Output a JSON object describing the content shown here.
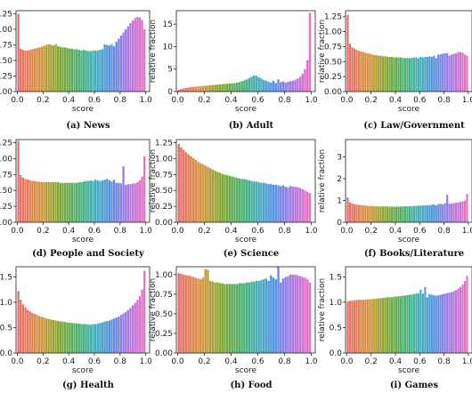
{
  "chart_data": [
    {
      "type": "bar",
      "caption": "(a) News",
      "xlabel": "score",
      "ylabel": "",
      "ylim": [
        0,
        1.3
      ],
      "yticks": [
        "0.00",
        "0.25",
        "0.50",
        "0.75",
        "1.00",
        "1.25"
      ],
      "xticks": [
        "0.0",
        "0.2",
        "0.4",
        "0.6",
        "0.8",
        "1.0"
      ],
      "values": [
        1.25,
        0.69,
        0.67,
        0.66,
        0.66,
        0.67,
        0.68,
        0.69,
        0.7,
        0.71,
        0.72,
        0.74,
        0.75,
        0.76,
        0.75,
        0.74,
        0.76,
        0.73,
        0.72,
        0.71,
        0.71,
        0.7,
        0.69,
        0.69,
        0.68,
        0.68,
        0.67,
        0.66,
        0.67,
        0.66,
        0.65,
        0.65,
        0.66,
        0.66,
        0.66,
        0.67,
        0.68,
        0.76,
        0.75,
        0.74,
        0.76,
        0.73,
        0.8,
        0.85,
        0.9,
        0.95,
        1.0,
        1.05,
        1.1,
        1.14,
        1.18,
        1.2,
        1.19,
        1.15,
        1.0
      ]
    },
    {
      "type": "bar",
      "caption": "(b) Adult",
      "xlabel": "score",
      "ylabel": "relative fraction",
      "ylim": [
        0,
        18
      ],
      "yticks": [
        "0",
        "5",
        "10",
        "15"
      ],
      "xticks": [
        "0.0",
        "0.2",
        "0.4",
        "0.6",
        "0.8",
        "1.0"
      ],
      "values": [
        0.4,
        0.6,
        0.7,
        0.8,
        0.9,
        1.0,
        1.05,
        1.1,
        1.15,
        1.2,
        1.25,
        1.3,
        1.35,
        1.4,
        1.45,
        1.5,
        1.55,
        1.6,
        1.65,
        1.7,
        1.75,
        1.8,
        1.85,
        1.9,
        2.0,
        2.1,
        2.3,
        2.5,
        2.7,
        3.0,
        3.3,
        3.6,
        3.5,
        3.2,
        2.9,
        2.6,
        2.4,
        2.2,
        2.0,
        2.4,
        1.9,
        2.7,
        2.1,
        2.3,
        2.0,
        2.2,
        2.3,
        2.4,
        2.6,
        2.9,
        3.3,
        4.0,
        5.0,
        7.0,
        17.5
      ]
    },
    {
      "type": "bar",
      "caption": "(c) Law/Government",
      "xlabel": "score",
      "ylabel": "relative fraction",
      "ylim": [
        0,
        1.35
      ],
      "yticks": [
        "0.00",
        "0.25",
        "0.50",
        "0.75",
        "1.00",
        "1.25"
      ],
      "xticks": [
        "0.0",
        "0.2",
        "0.4",
        "0.6",
        "0.8",
        "1.0"
      ],
      "values": [
        1.28,
        0.8,
        0.74,
        0.72,
        0.7,
        0.68,
        0.67,
        0.66,
        0.65,
        0.64,
        0.63,
        0.62,
        0.61,
        0.61,
        0.6,
        0.6,
        0.59,
        0.59,
        0.58,
        0.58,
        0.58,
        0.57,
        0.57,
        0.57,
        0.57,
        0.56,
        0.56,
        0.56,
        0.56,
        0.56,
        0.57,
        0.57,
        0.56,
        0.58,
        0.57,
        0.58,
        0.58,
        0.59,
        0.58,
        0.6,
        0.56,
        0.62,
        0.62,
        0.63,
        0.64,
        0.64,
        0.6,
        0.62,
        0.63,
        0.64,
        0.66,
        0.66,
        0.65,
        0.62,
        0.6
      ]
    },
    {
      "type": "bar",
      "caption": "(d) People and Society",
      "xlabel": "score",
      "ylabel": "",
      "ylim": [
        0,
        1.3
      ],
      "yticks": [
        "0.00",
        "0.25",
        "0.50",
        "0.75",
        "1.00",
        "1.25"
      ],
      "xticks": [
        "0.0",
        "0.2",
        "0.4",
        "0.6",
        "0.8",
        "1.0"
      ],
      "values": [
        1.28,
        0.74,
        0.7,
        0.68,
        0.67,
        0.66,
        0.65,
        0.65,
        0.64,
        0.64,
        0.63,
        0.63,
        0.63,
        0.63,
        0.63,
        0.63,
        0.63,
        0.63,
        0.62,
        0.62,
        0.62,
        0.62,
        0.62,
        0.62,
        0.62,
        0.62,
        0.63,
        0.63,
        0.64,
        0.65,
        0.65,
        0.66,
        0.65,
        0.67,
        0.66,
        0.65,
        0.66,
        0.67,
        0.68,
        0.66,
        0.64,
        0.67,
        0.62,
        0.62,
        0.61,
        0.88,
        0.59,
        0.6,
        0.6,
        0.61,
        0.61,
        0.63,
        0.66,
        0.72,
        1.04
      ]
    },
    {
      "type": "bar",
      "caption": "(e) Science",
      "xlabel": "score",
      "ylabel": "relative fraction",
      "ylim": [
        0,
        1.3
      ],
      "yticks": [
        "0.00",
        "0.25",
        "0.50",
        "0.75",
        "1.00",
        "1.25"
      ],
      "xticks": [
        "0.0",
        "0.2",
        "0.4",
        "0.6",
        "0.8",
        "1.0"
      ],
      "values": [
        1.23,
        1.18,
        1.14,
        1.1,
        1.07,
        1.04,
        1.01,
        0.98,
        0.95,
        0.93,
        0.91,
        0.89,
        0.87,
        0.85,
        0.83,
        0.81,
        0.79,
        0.78,
        0.76,
        0.75,
        0.74,
        0.73,
        0.72,
        0.71,
        0.7,
        0.69,
        0.68,
        0.68,
        0.67,
        0.66,
        0.65,
        0.64,
        0.64,
        0.63,
        0.62,
        0.62,
        0.61,
        0.6,
        0.6,
        0.59,
        0.59,
        0.58,
        0.57,
        0.58,
        0.56,
        0.55,
        0.57,
        0.56,
        0.56,
        0.55,
        0.54,
        0.52,
        0.5,
        0.48,
        0.46
      ]
    },
    {
      "type": "bar",
      "caption": "(f) Books/Literature",
      "xlabel": "score",
      "ylabel": "relative fraction",
      "ylim": [
        0,
        3.8
      ],
      "yticks": [
        "0",
        "1",
        "2",
        "3"
      ],
      "xticks": [
        "0.0",
        "0.2",
        "0.4",
        "0.6",
        "0.8",
        "1.0"
      ],
      "values": [
        1.15,
        0.92,
        0.87,
        0.84,
        0.82,
        0.8,
        0.79,
        0.78,
        0.77,
        0.76,
        0.75,
        0.75,
        0.74,
        0.74,
        0.73,
        0.73,
        0.73,
        0.73,
        0.72,
        0.72,
        0.72,
        0.72,
        0.72,
        0.72,
        0.72,
        0.73,
        0.73,
        0.73,
        0.74,
        0.74,
        0.75,
        0.76,
        0.76,
        0.77,
        0.77,
        0.78,
        0.78,
        0.79,
        0.8,
        0.82,
        0.78,
        0.84,
        0.85,
        0.82,
        0.88,
        1.26,
        0.86,
        0.87,
        0.88,
        0.9,
        0.92,
        0.94,
        0.96,
        1.0,
        1.3
      ]
    },
    {
      "type": "bar",
      "caption": "(g) Health",
      "xlabel": "score",
      "ylabel": "",
      "ylim": [
        0,
        1.7
      ],
      "yticks": [
        "0.0",
        "0.5",
        "1.0",
        "1.5"
      ],
      "xticks": [
        "0.0",
        "0.2",
        "0.4",
        "0.6",
        "0.8",
        "1.0"
      ],
      "values": [
        1.22,
        1.05,
        0.96,
        0.9,
        0.85,
        0.82,
        0.79,
        0.77,
        0.75,
        0.73,
        0.71,
        0.7,
        0.68,
        0.67,
        0.66,
        0.65,
        0.64,
        0.63,
        0.62,
        0.62,
        0.61,
        0.6,
        0.6,
        0.59,
        0.59,
        0.58,
        0.58,
        0.57,
        0.57,
        0.57,
        0.56,
        0.56,
        0.57,
        0.57,
        0.58,
        0.59,
        0.6,
        0.62,
        0.63,
        0.64,
        0.66,
        0.68,
        0.7,
        0.72,
        0.75,
        0.78,
        0.81,
        0.85,
        0.89,
        0.94,
        0.99,
        1.05,
        1.12,
        1.25,
        1.62
      ]
    },
    {
      "type": "bar",
      "caption": "(h) Food",
      "xlabel": "score",
      "ylabel": "relative fraction",
      "ylim": [
        0,
        1.1
      ],
      "yticks": [
        "0.00",
        "0.25",
        "0.50",
        "0.75",
        "1.00"
      ],
      "xticks": [
        "0.0",
        "0.2",
        "0.4",
        "0.6",
        "0.8",
        "1.0"
      ],
      "values": [
        1.02,
        1.01,
        1.0,
        0.99,
        0.99,
        0.98,
        0.97,
        0.96,
        0.95,
        0.94,
        0.96,
        1.07,
        1.06,
        0.92,
        0.91,
        0.9,
        0.9,
        0.89,
        0.89,
        0.88,
        0.88,
        0.88,
        0.88,
        0.88,
        0.88,
        0.89,
        0.89,
        0.89,
        0.9,
        0.9,
        0.91,
        0.91,
        0.92,
        0.92,
        0.93,
        0.94,
        0.95,
        0.92,
        0.99,
        0.96,
        0.94,
        1.1,
        0.9,
        0.95,
        0.97,
        0.98,
        1.0,
        1.0,
        1.0,
        0.99,
        0.98,
        0.97,
        0.96,
        0.94,
        0.9
      ]
    },
    {
      "type": "bar",
      "caption": "(i) Games",
      "xlabel": "score",
      "ylabel": "relative fraction",
      "ylim": [
        0,
        1.7
      ],
      "yticks": [
        "0.0",
        "0.5",
        "1.0",
        "1.5"
      ],
      "xticks": [
        "0.0",
        "0.2",
        "0.4",
        "0.6",
        "0.8",
        "1.0"
      ],
      "values": [
        1.02,
        1.03,
        1.03,
        1.04,
        1.04,
        1.05,
        1.05,
        1.05,
        1.05,
        1.06,
        1.06,
        1.06,
        1.07,
        1.07,
        1.08,
        1.08,
        1.09,
        1.09,
        1.1,
        1.1,
        1.1,
        1.11,
        1.11,
        1.12,
        1.12,
        1.13,
        1.13,
        1.14,
        1.15,
        1.15,
        1.16,
        1.17,
        1.18,
        1.25,
        1.17,
        1.3,
        1.1,
        1.16,
        1.15,
        1.14,
        1.13,
        1.14,
        1.15,
        1.16,
        1.17,
        1.18,
        1.19,
        1.2,
        1.22,
        1.24,
        1.27,
        1.3,
        1.35,
        1.42,
        1.52
      ]
    }
  ]
}
